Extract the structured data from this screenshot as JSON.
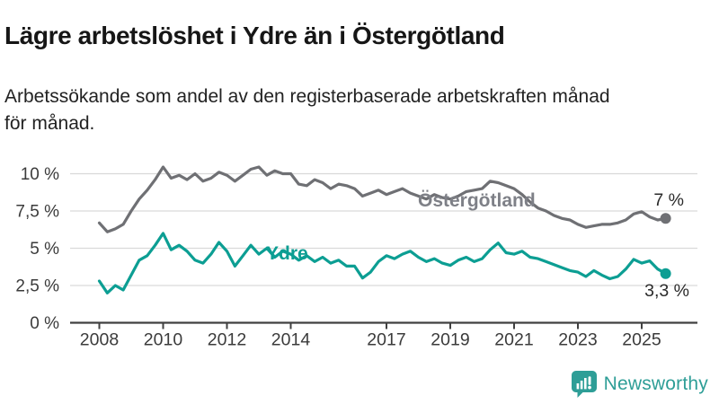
{
  "header": {
    "title": "Lägre arbetslöshet i Ydre än i Östergötland",
    "subtitle": "Arbetssökande som andel av den registerbaserade arbetskraften månad\nför månad."
  },
  "footer": {
    "brand": "Newsworthy"
  },
  "colors": {
    "grid": "#d9d9d9",
    "axis": "#404040",
    "tick_text": "#3b3b3b",
    "annotation_text": "#2b2b2b",
    "series_label_gray": "#7e8087",
    "brand_teal": "#2e9e97"
  },
  "chart_data": {
    "type": "line",
    "title": "Lägre arbetslöshet i Ydre än i Östergötland",
    "xlabel": "",
    "ylabel": "",
    "grid": "horizontal",
    "legend_position": "inline-labels",
    "ylim": [
      0,
      10.8
    ],
    "start_year": 2008,
    "step_years": 0.25,
    "y_ticks": [
      {
        "value": 0,
        "label": "0 %"
      },
      {
        "value": 2.5,
        "label": "2,5 %"
      },
      {
        "value": 5,
        "label": "5 %"
      },
      {
        "value": 7.5,
        "label": "7,5 %"
      },
      {
        "value": 10,
        "label": "10 %"
      }
    ],
    "x_ticks": [
      {
        "year": 2008,
        "label": "2008"
      },
      {
        "year": 2010,
        "label": "2010"
      },
      {
        "year": 2012,
        "label": "2012"
      },
      {
        "year": 2014,
        "label": "2014"
      },
      {
        "year": 2017,
        "label": "2017"
      },
      {
        "year": 2019,
        "label": "2019"
      },
      {
        "year": 2021,
        "label": "2021"
      },
      {
        "year": 2023,
        "label": "2023"
      },
      {
        "year": 2025,
        "label": "2025"
      }
    ],
    "series": [
      {
        "name": "Östergötland",
        "id": "ostergotland",
        "color": "#6f7074",
        "end_label": "7 %",
        "values": [
          6.7,
          6.1,
          6.3,
          6.6,
          7.5,
          8.3,
          8.9,
          9.6,
          10.45,
          9.7,
          9.9,
          9.6,
          10.0,
          9.5,
          9.7,
          10.1,
          9.9,
          9.5,
          9.9,
          10.3,
          10.45,
          9.9,
          10.2,
          10.0,
          10.0,
          9.3,
          9.2,
          9.6,
          9.4,
          9.0,
          9.3,
          9.2,
          9.0,
          8.5,
          8.7,
          8.9,
          8.6,
          8.8,
          9.0,
          8.7,
          8.5,
          8.3,
          8.6,
          8.4,
          8.3,
          8.5,
          8.8,
          8.9,
          9.0,
          9.5,
          9.4,
          9.2,
          9.0,
          8.6,
          8.1,
          7.7,
          7.5,
          7.2,
          7.0,
          6.9,
          6.6,
          6.4,
          6.5,
          6.6,
          6.6,
          6.7,
          6.9,
          7.3,
          7.45,
          7.1,
          6.9,
          7.0
        ]
      },
      {
        "name": "Ydre",
        "id": "ydre",
        "color": "#0c9e93",
        "end_label": "3,3 %",
        "values": [
          2.8,
          2.0,
          2.5,
          2.2,
          3.2,
          4.2,
          4.5,
          5.2,
          6.0,
          4.9,
          5.2,
          4.8,
          4.2,
          4.0,
          4.6,
          5.4,
          4.8,
          3.8,
          4.5,
          5.2,
          4.6,
          5.0,
          4.4,
          4.8,
          4.6,
          4.2,
          4.5,
          4.1,
          4.4,
          4.0,
          4.2,
          3.8,
          3.8,
          3.0,
          3.4,
          4.1,
          4.5,
          4.3,
          4.6,
          4.8,
          4.4,
          4.1,
          4.3,
          4.0,
          3.85,
          4.2,
          4.4,
          4.1,
          4.3,
          4.9,
          5.35,
          4.7,
          4.6,
          4.8,
          4.4,
          4.3,
          4.1,
          3.9,
          3.7,
          3.5,
          3.4,
          3.1,
          3.5,
          3.2,
          2.95,
          3.1,
          3.6,
          4.25,
          4.0,
          4.15,
          3.6,
          3.3
        ]
      }
    ]
  }
}
